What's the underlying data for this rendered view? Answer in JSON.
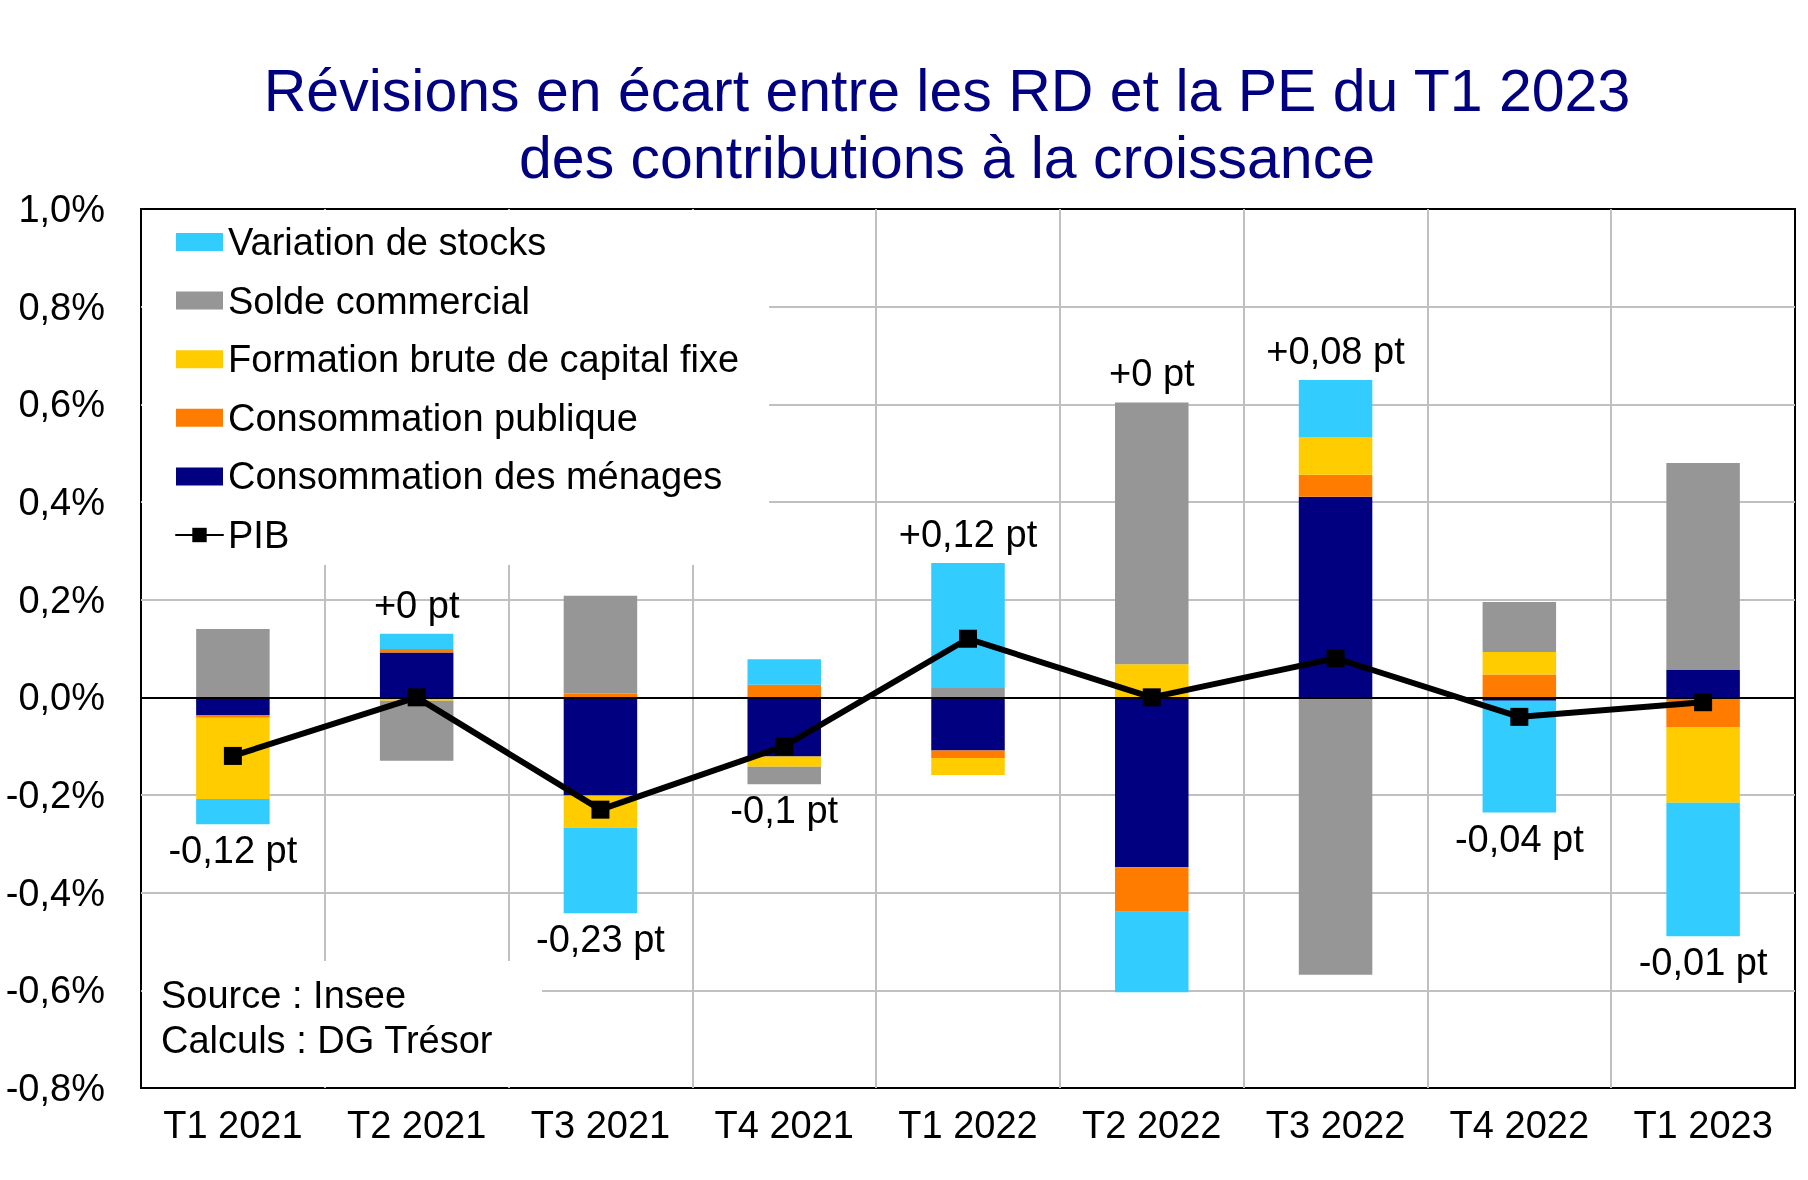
{
  "chart_data": {
    "type": "bar",
    "title": "Révisions en écart entre les RD et la PE du T1 2023\ndes contributions à la croissance",
    "categories": [
      "T1 2021",
      "T2 2021",
      "T3 2021",
      "T4 2021",
      "T1 2022",
      "T2 2022",
      "T3 2022",
      "T4 2022",
      "T1 2023"
    ],
    "stacked": true,
    "series": [
      {
        "name": "Consommation des ménages",
        "color": "#000080",
        "values": [
          -0.036,
          0.092,
          -0.201,
          -0.121,
          -0.109,
          -0.348,
          0.411,
          -0.007,
          0.056
        ]
      },
      {
        "name": "Consommation publique",
        "color": "#ff7c00",
        "values": [
          -0.006,
          0.007,
          0.008,
          0.026,
          -0.015,
          -0.091,
          0.045,
          0.047,
          -0.062
        ]
      },
      {
        "name": "Formation brute de capital fixe",
        "color": "#ffcc00",
        "values": [
          -0.166,
          -0.007,
          -0.066,
          -0.021,
          -0.035,
          0.068,
          0.076,
          0.046,
          -0.154
        ]
      },
      {
        "name": "Solde commercial",
        "color": "#969696",
        "values": [
          0.14,
          -0.123,
          0.2,
          -0.036,
          0.019,
          0.536,
          -0.568,
          0.102,
          0.424
        ]
      },
      {
        "name": "Variation de stocks",
        "color": "#33ccff",
        "values": [
          -0.052,
          0.031,
          -0.175,
          0.052,
          0.256,
          -0.165,
          0.118,
          -0.229,
          -0.273
        ]
      },
      {
        "name": "PIB",
        "type": "line",
        "color": "#000000",
        "values": [
          -0.12,
          0,
          -0.23,
          -0.1,
          0.12,
          0,
          0.08,
          -0.04,
          -0.01
        ]
      }
    ],
    "totals": [
      "-0,12 pt",
      "+0 pt",
      "-0,23 pt",
      "-0,1 pt",
      "+0,12 pt",
      "+0 pt",
      "+0,08 pt",
      "-0,04 pt",
      "-0,01 pt"
    ],
    "ylim": [
      -0.8,
      1.0
    ],
    "yticks": [
      {
        "value": -0.8,
        "label": "-0,8%"
      },
      {
        "value": -0.6,
        "label": "-0,6%"
      },
      {
        "value": -0.4,
        "label": "-0,4%"
      },
      {
        "value": -0.2,
        "label": "-0,2%"
      },
      {
        "value": 0,
        "label": "0,0%"
      },
      {
        "value": 0.2,
        "label": "0,2%"
      },
      {
        "value": 0.4,
        "label": "0,4%"
      },
      {
        "value": 0.6,
        "label": "0,6%"
      },
      {
        "value": 0.8,
        "label": "0,8%"
      },
      {
        "value": 1.0,
        "label": "1,0%"
      }
    ],
    "grid": true,
    "legend": "top left",
    "marker": "square",
    "annotations": [
      "Source : Insee",
      "Calculs : DG Trésor"
    ]
  }
}
